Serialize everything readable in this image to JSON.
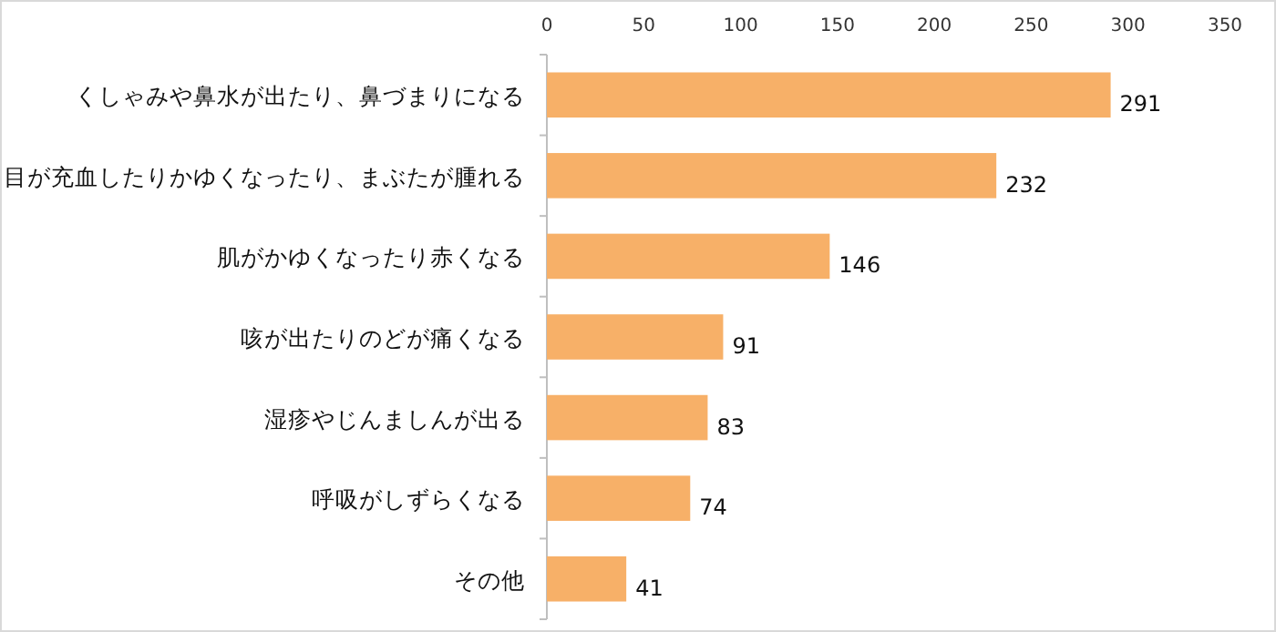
{
  "chart_data": {
    "type": "bar",
    "orientation": "horizontal",
    "categories": [
      "くしゃみや鼻水が出たり、鼻づまりになる",
      "目が充血したりかゆくなったり、まぶたが腫れる",
      "肌がかゆくなったり赤くなる",
      "咳が出たりのどが痛くなる",
      "湿疹やじんましんが出る",
      "呼吸がしずらくなる",
      "その他"
    ],
    "values": [
      291,
      232,
      146,
      91,
      83,
      74,
      41
    ],
    "color": "#f7b068",
    "xlim": [
      0,
      350
    ],
    "xticks": [
      0,
      50,
      100,
      150,
      200,
      250,
      300,
      350
    ],
    "data_labels": true
  }
}
